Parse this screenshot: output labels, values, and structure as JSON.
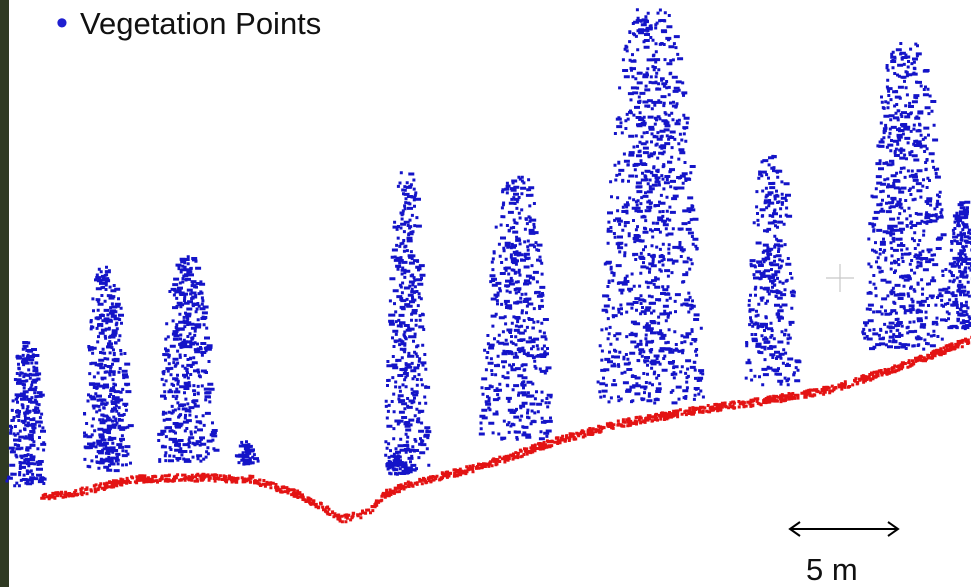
{
  "legend": {
    "items": [
      {
        "label": "Vegetation Points"
      }
    ]
  },
  "scale_bar": {
    "label": "5 m"
  }
}
